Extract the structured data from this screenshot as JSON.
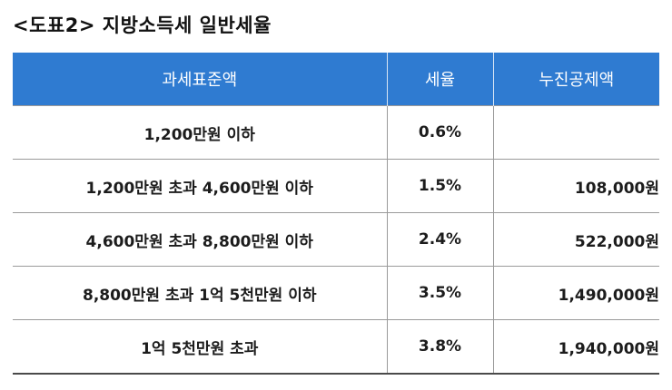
{
  "caption": "<도표2> 지방소득세 일반세율",
  "table": {
    "headers": {
      "bracket": "과세표준액",
      "rate": "세율",
      "deduction": "누진공제액"
    },
    "rows": [
      {
        "bracket": "1,200만원 이하",
        "rate": "0.6%",
        "deduction": ""
      },
      {
        "bracket": "1,200만원 초과 4,600만원 이하",
        "rate": "1.5%",
        "deduction": "108,000원"
      },
      {
        "bracket": "4,600만원 초과 8,800만원 이하",
        "rate": "2.4%",
        "deduction": "522,000원"
      },
      {
        "bracket": "8,800만원 초과 1억 5천만원 이하",
        "rate": "3.5%",
        "deduction": "1,490,000원"
      },
      {
        "bracket": "1억 5천만원 초과",
        "rate": "3.8%",
        "deduction": "1,940,000원"
      }
    ]
  },
  "colors": {
    "header_bg": "#2f7bd1",
    "header_text": "#ffffff"
  }
}
